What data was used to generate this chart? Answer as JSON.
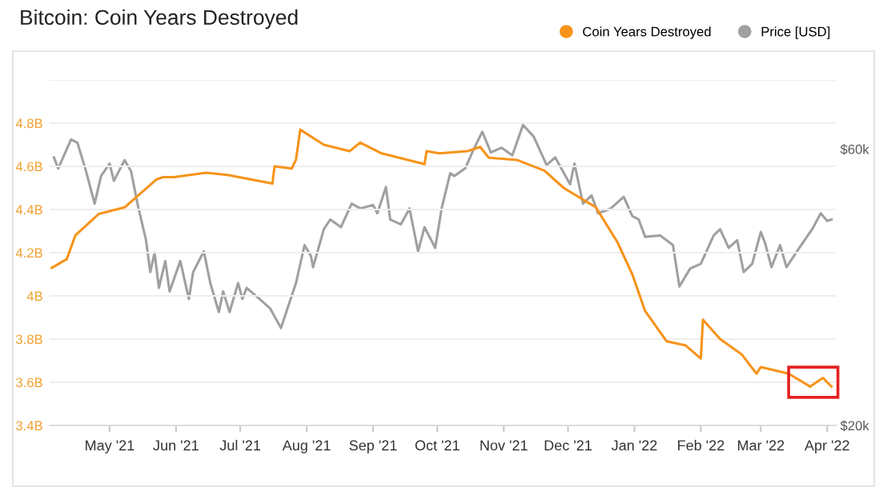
{
  "chart_data": {
    "type": "line",
    "title": "Bitcoin: Coin Years Destroyed",
    "xlim": [
      "2021-04-03",
      "2022-04-05"
    ],
    "xticks": [
      {
        "value": "2021-05-01",
        "label": "May '21"
      },
      {
        "value": "2021-06-01",
        "label": "Jun '21"
      },
      {
        "value": "2021-07-01",
        "label": "Jul '21"
      },
      {
        "value": "2021-08-01",
        "label": "Aug '21"
      },
      {
        "value": "2021-09-01",
        "label": "Sep '21"
      },
      {
        "value": "2021-10-01",
        "label": "Oct '21"
      },
      {
        "value": "2021-11-01",
        "label": "Nov '21"
      },
      {
        "value": "2021-12-01",
        "label": "Dec '21"
      },
      {
        "value": "2022-01-01",
        "label": "Jan '22"
      },
      {
        "value": "2022-02-01",
        "label": "Feb '22"
      },
      {
        "value": "2022-03-01",
        "label": "Mar '22"
      },
      {
        "value": "2022-04-01",
        "label": "Apr '22"
      }
    ],
    "ylim": [
      3.4,
      5.0
    ],
    "yticks": [
      {
        "value": 3.4,
        "label": "3.4B"
      },
      {
        "value": 3.6,
        "label": "3.6B"
      },
      {
        "value": 3.8,
        "label": "3.8B"
      },
      {
        "value": 4.0,
        "label": "4B"
      },
      {
        "value": 4.2,
        "label": "4.2B"
      },
      {
        "value": 4.4,
        "label": "4.4B"
      },
      {
        "value": 4.6,
        "label": "4.6B"
      },
      {
        "value": 4.8,
        "label": "4.8B"
      },
      {
        "value": 5.0,
        "label": null
      }
    ],
    "y2lim": [
      20,
      70
    ],
    "y2ticks": [
      {
        "value": 20,
        "label": "$20k"
      },
      {
        "value": 60,
        "label": "$60k"
      }
    ],
    "grid": "y",
    "legend": "top right",
    "marker": "none",
    "line_style": "solid",
    "series": [
      {
        "name": "Coin Years Destroyed",
        "color": "#f7931a",
        "x": [
          "2021-04-04",
          "2021-04-11",
          "2021-04-15",
          "2021-04-26",
          "2021-05-08",
          "2021-05-23",
          "2021-05-26",
          "2021-05-31",
          "2021-06-15",
          "2021-06-25",
          "2021-07-16",
          "2021-07-17",
          "2021-07-25",
          "2021-07-27",
          "2021-07-29",
          "2021-08-09",
          "2021-08-21",
          "2021-08-26",
          "2021-09-05",
          "2021-09-25",
          "2021-09-26",
          "2021-10-02",
          "2021-10-15",
          "2021-10-21",
          "2021-10-25",
          "2021-11-07",
          "2021-11-20",
          "2021-11-29",
          "2021-12-14",
          "2021-12-24",
          "2021-12-31",
          "2022-01-06",
          "2022-01-16",
          "2022-01-25",
          "2022-02-01",
          "2022-02-02",
          "2022-02-10",
          "2022-02-20",
          "2022-02-27",
          "2022-03-01",
          "2022-03-14",
          "2022-03-24",
          "2022-03-30",
          "2022-04-03"
        ],
        "values": [
          4.13,
          4.17,
          4.28,
          4.38,
          4.41,
          4.54,
          4.55,
          4.55,
          4.57,
          4.56,
          4.52,
          4.6,
          4.59,
          4.63,
          4.77,
          4.7,
          4.67,
          4.71,
          4.66,
          4.61,
          4.67,
          4.66,
          4.67,
          4.69,
          4.64,
          4.63,
          4.58,
          4.5,
          4.41,
          4.25,
          4.1,
          3.93,
          3.79,
          3.77,
          3.71,
          3.89,
          3.8,
          3.73,
          3.64,
          3.67,
          3.64,
          3.58,
          3.62,
          3.58
        ]
      },
      {
        "name": "Price [USD]",
        "color": "#a0a0a0",
        "axis": "y2",
        "x": [
          "2021-04-05",
          "2021-04-07",
          "2021-04-13",
          "2021-04-16",
          "2021-04-20",
          "2021-04-24",
          "2021-04-27",
          "2021-05-01",
          "2021-05-03",
          "2021-05-08",
          "2021-05-11",
          "2021-05-14",
          "2021-05-18",
          "2021-05-20",
          "2021-05-22",
          "2021-05-24",
          "2021-05-27",
          "2021-05-29",
          "2021-06-03",
          "2021-06-07",
          "2021-06-09",
          "2021-06-14",
          "2021-06-17",
          "2021-06-21",
          "2021-06-23",
          "2021-06-26",
          "2021-06-30",
          "2021-07-02",
          "2021-07-04",
          "2021-07-10",
          "2021-07-15",
          "2021-07-20",
          "2021-07-23",
          "2021-07-27",
          "2021-07-31",
          "2021-08-03",
          "2021-08-04",
          "2021-08-09",
          "2021-08-12",
          "2021-08-17",
          "2021-08-22",
          "2021-08-26",
          "2021-09-01",
          "2021-09-03",
          "2021-09-07",
          "2021-09-09",
          "2021-09-14",
          "2021-09-18",
          "2021-09-22",
          "2021-09-25",
          "2021-09-30",
          "2021-10-03",
          "2021-10-07",
          "2021-10-09",
          "2021-10-14",
          "2021-10-18",
          "2021-10-22",
          "2021-10-26",
          "2021-10-31",
          "2021-11-05",
          "2021-11-10",
          "2021-11-15",
          "2021-11-21",
          "2021-11-25",
          "2021-12-02",
          "2021-12-04",
          "2021-12-08",
          "2021-12-12",
          "2021-12-15",
          "2021-12-21",
          "2021-12-27",
          "2021-12-31",
          "2022-01-03",
          "2022-01-06",
          "2022-01-13",
          "2022-01-19",
          "2022-01-22",
          "2022-01-27",
          "2022-02-01",
          "2022-02-07",
          "2022-02-10",
          "2022-02-14",
          "2022-02-18",
          "2022-02-21",
          "2022-02-25",
          "2022-03-01",
          "2022-03-03",
          "2022-03-06",
          "2022-03-10",
          "2022-03-13",
          "2022-03-19",
          "2022-03-25",
          "2022-03-29",
          "2022-04-01",
          "2022-04-03"
        ],
        "values": [
          58.8,
          57.2,
          61.4,
          60.9,
          56.8,
          52.1,
          56.1,
          57.9,
          55.4,
          58.4,
          56.8,
          52.1,
          46.8,
          42.2,
          45.0,
          39.9,
          43.8,
          39.4,
          43.8,
          38.3,
          42.2,
          45.2,
          40.6,
          36.4,
          39.4,
          36.4,
          40.6,
          38.3,
          39.9,
          38.3,
          36.9,
          34.1,
          36.9,
          40.6,
          46.1,
          44.5,
          42.9,
          48.4,
          49.8,
          48.7,
          52.1,
          51.4,
          51.9,
          50.7,
          54.5,
          49.8,
          49.1,
          51.4,
          45.2,
          48.7,
          45.7,
          51.4,
          56.5,
          56.1,
          57.2,
          60.0,
          62.5,
          59.5,
          60.2,
          59.1,
          63.5,
          61.8,
          57.7,
          58.8,
          54.9,
          57.9,
          52.1,
          53.3,
          50.7,
          51.4,
          53.1,
          50.3,
          49.8,
          47.3,
          47.5,
          46.1,
          40.1,
          42.7,
          43.4,
          47.5,
          48.4,
          45.7,
          46.8,
          42.2,
          43.4,
          48.0,
          46.4,
          42.9,
          46.1,
          42.9,
          45.7,
          48.4,
          50.7,
          49.6,
          49.8
        ]
      }
    ]
  }
}
